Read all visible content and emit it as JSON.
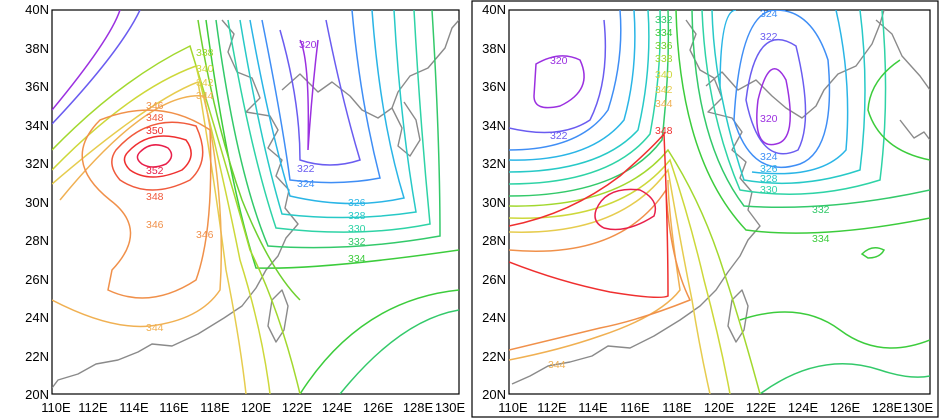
{
  "maps": [
    {
      "panel": "left",
      "x_ticks": [
        "110E",
        "112E",
        "114E",
        "116E",
        "118E",
        "120E",
        "122E",
        "124E",
        "126E",
        "128E",
        "130E"
      ],
      "y_ticks": [
        "20N",
        "22N",
        "24N",
        "26N",
        "28N",
        "30N",
        "32N",
        "34N",
        "36N",
        "38N",
        "40N"
      ],
      "contour_labels": [
        "320",
        "322",
        "324",
        "326",
        "328",
        "330",
        "332",
        "334",
        "338",
        "340",
        "342",
        "344",
        "346",
        "348",
        "350",
        "352",
        "348",
        "346",
        "346",
        "344"
      ]
    },
    {
      "panel": "right",
      "x_ticks": [
        "110E",
        "112E",
        "114E",
        "116E",
        "118E",
        "120E",
        "122E",
        "124E",
        "126E",
        "128E",
        "130E"
      ],
      "y_ticks": [
        "20N",
        "22N",
        "24N",
        "26N",
        "28N",
        "30N",
        "32N",
        "34N",
        "36N",
        "38N",
        "40N"
      ],
      "contour_labels": [
        "324",
        "322",
        "320",
        "324",
        "326",
        "328",
        "330",
        "332",
        "334",
        "320",
        "322",
        "332",
        "334",
        "336",
        "338",
        "340",
        "342",
        "344",
        "348",
        "344"
      ]
    }
  ],
  "contour_colors": {
    "320": "#9b30e0",
    "322": "#6a5cf0",
    "324": "#3f8ef5",
    "326": "#2ab5e6",
    "328": "#27c9c7",
    "330": "#2ed3a6",
    "332": "#33c96a",
    "334": "#3ccc3c",
    "336": "#6ed02e",
    "338": "#a2d82e",
    "340": "#cdd83a",
    "342": "#e6cc4e",
    "344": "#f0b052",
    "346": "#f0904a",
    "348": "#f05a3c",
    "350": "#ef2f2f",
    "352": "#e81f4a"
  }
}
